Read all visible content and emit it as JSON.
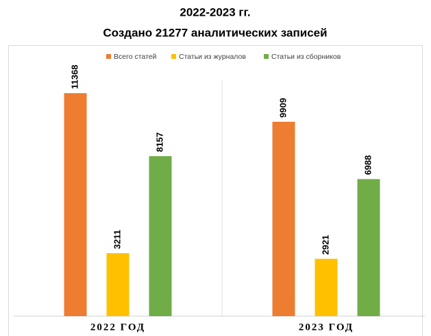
{
  "chart_data": {
    "type": "bar",
    "title": "2022-2023 гг.",
    "subtitle": "Создано 21277 аналитических записей",
    "categories": [
      "2022 ГОД",
      "2023 ГОД"
    ],
    "series": [
      {
        "name": "Всего статей",
        "color": "#ed7d31",
        "values": [
          11368,
          9909
        ]
      },
      {
        "name": "Статьи из журналов",
        "color": "#ffc000",
        "values": [
          3211,
          2921
        ]
      },
      {
        "name": "Статьи из сборников",
        "color": "#70ad47",
        "values": [
          8157,
          6988
        ]
      }
    ],
    "ylim": [
      0,
      12000
    ],
    "legend": "top"
  }
}
